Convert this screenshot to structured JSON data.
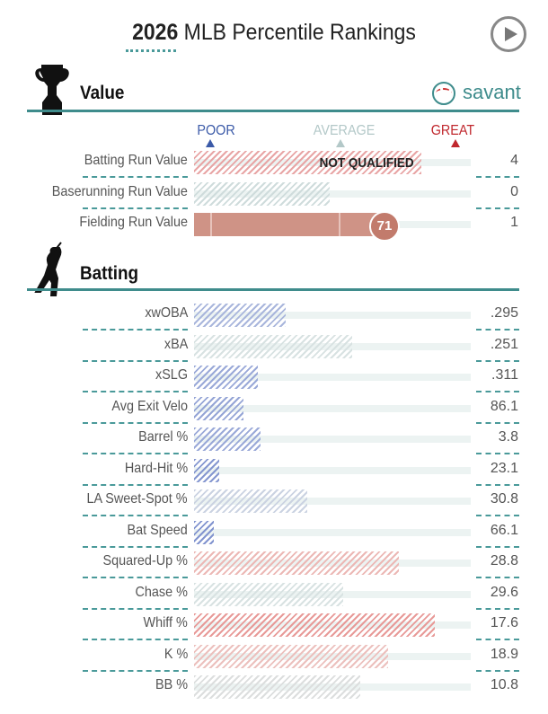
{
  "header": {
    "year": "2026",
    "title": "MLB Percentile Rankings"
  },
  "value_section": {
    "title": "Value",
    "brand": "savant",
    "scale": {
      "poor": "POOR",
      "average": "AVERAGE",
      "great": "GREAT"
    },
    "rows": [
      {
        "label": "Batting Run Value",
        "value": "4",
        "percentile": 82,
        "qualified": false,
        "status": "NOT QUALIFIED",
        "color": "#e8a5a5"
      },
      {
        "label": "Baserunning Run Value",
        "value": "0",
        "percentile": 49,
        "qualified": false,
        "color": "#cfdcdc"
      },
      {
        "label": "Fielding Run Value",
        "value": "1",
        "percentile": 71,
        "qualified": true,
        "badge": "71",
        "color": "#cf9386"
      }
    ]
  },
  "batting_section": {
    "title": "Batting",
    "rows": [
      {
        "label": "xwOBA",
        "value": ".295",
        "percentile": 33,
        "color": "#a9b6dc"
      },
      {
        "label": "xBA",
        "value": ".251",
        "percentile": 57,
        "color": "#d8e2e2"
      },
      {
        "label": "xSLG",
        "value": ".311",
        "percentile": 23,
        "color": "#9aa9d8"
      },
      {
        "label": "Avg Exit Velo",
        "value": "86.1",
        "percentile": 18,
        "color": "#95a5d6"
      },
      {
        "label": "Barrel %",
        "value": "3.8",
        "percentile": 24,
        "color": "#9aa9d8"
      },
      {
        "label": "Hard-Hit %",
        "value": "23.1",
        "percentile": 9,
        "color": "#8597d0"
      },
      {
        "label": "LA Sweet-Spot %",
        "value": "30.8",
        "percentile": 41,
        "color": "#cbd3e2"
      },
      {
        "label": "Bat Speed",
        "value": "66.1",
        "percentile": 7,
        "color": "#8294cf"
      },
      {
        "label": "Squared-Up %",
        "value": "28.8",
        "percentile": 74,
        "color": "#ecb8b5"
      },
      {
        "label": "Chase %",
        "value": "29.6",
        "percentile": 54,
        "color": "#d8e2e2"
      },
      {
        "label": "Whiff %",
        "value": "17.6",
        "percentile": 87,
        "color": "#e89a98"
      },
      {
        "label": "K %",
        "value": "18.9",
        "percentile": 70,
        "color": "#ecc0bd"
      },
      {
        "label": "BB %",
        "value": "10.8",
        "percentile": 60,
        "color": "#dcdede"
      }
    ]
  }
}
